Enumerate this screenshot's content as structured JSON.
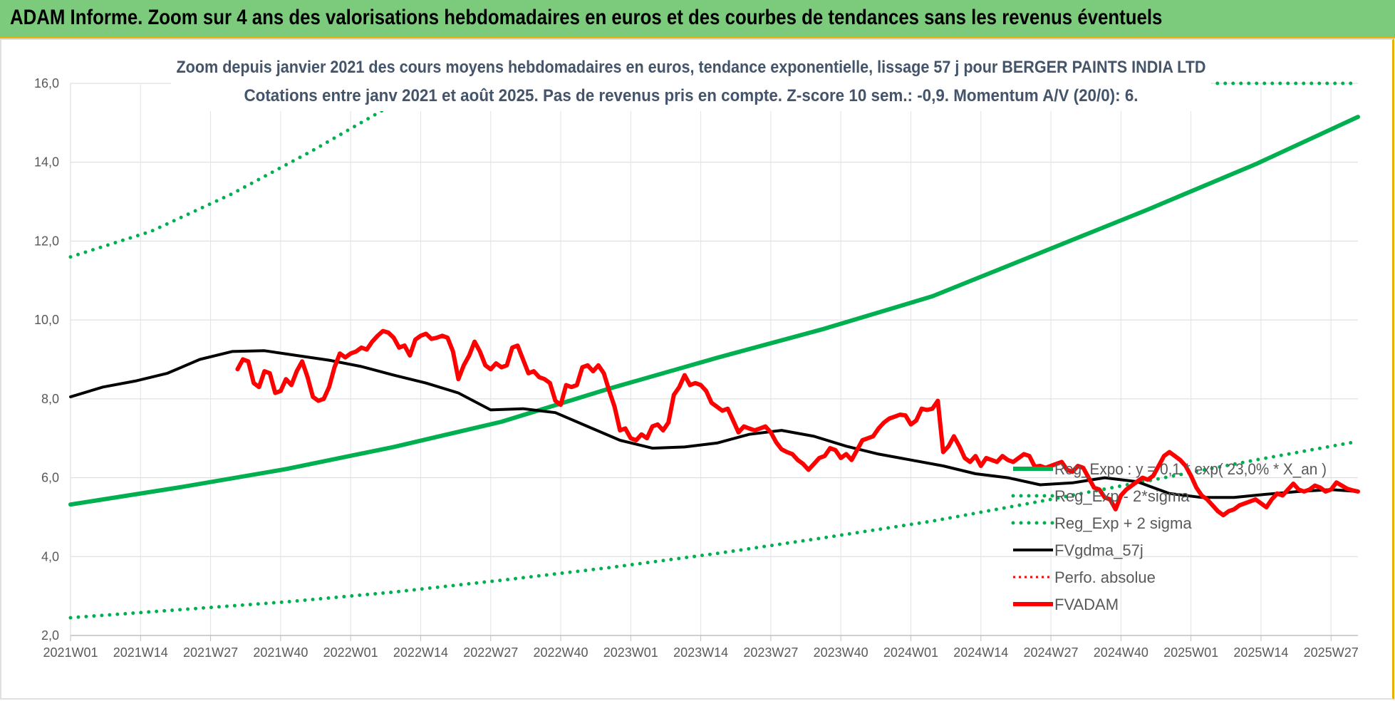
{
  "banner": {
    "title": "ADAM Informe. Zoom sur 4 ans des valorisations hebdomadaires en euros et des courbes de tendances sans les revenus éventuels",
    "background": "#7ccb7c"
  },
  "chart_data": {
    "type": "line",
    "title": "Zoom depuis janvier 2021 des cours moyens hebdomadaires en euros, tendance exponentielle, lissage 57 j pour BERGER PAINTS INDIA LTD",
    "subtitle": "Cotations entre janv 2021 et août 2025.  Pas de revenus pris en compte. Z-score 10 sem.: -0,9. Momentum A/V (20/0): 6.",
    "xlabel": "",
    "ylabel": "",
    "ylim": [
      2.0,
      16.0
    ],
    "yticks": [
      "16,0",
      "14,0",
      "12,0",
      "10,0",
      "8,0",
      "6,0",
      "4,0",
      "2,0"
    ],
    "ytick_values": [
      16,
      14,
      12,
      10,
      8,
      6,
      4,
      2
    ],
    "xticks": [
      "2021W01",
      "2021W14",
      "2021W27",
      "2021W40",
      "2022W01",
      "2022W14",
      "2022W27",
      "2022W40",
      "2023W01",
      "2023W14",
      "2023W27",
      "2023W40",
      "2024W01",
      "2024W14",
      "2024W27",
      "2024W40",
      "2025W01",
      "2025W14",
      "2025W27"
    ],
    "xtick_weeks": [
      0,
      13,
      26,
      39,
      52,
      65,
      78,
      91,
      104,
      117,
      130,
      143,
      156,
      169,
      182,
      195,
      208,
      221,
      234
    ],
    "n_weeks": 240,
    "grid": true,
    "legend_position": "bottom-right",
    "series": [
      {
        "name": "Reg_Expo : y = 0,1 * exp( 23,0% * X_an )",
        "style": "solid",
        "color": "#00b050",
        "points": [
          [
            0,
            5.32
          ],
          [
            20,
            5.75
          ],
          [
            40,
            6.22
          ],
          [
            60,
            6.78
          ],
          [
            80,
            7.42
          ],
          [
            100,
            8.26
          ],
          [
            120,
            9.04
          ],
          [
            140,
            9.78
          ],
          [
            160,
            10.6
          ],
          [
            180,
            11.7
          ],
          [
            200,
            12.8
          ],
          [
            220,
            13.95
          ],
          [
            239,
            15.15
          ]
        ]
      },
      {
        "name": "Reg_Exp - 2*sigma",
        "style": "dotted",
        "color": "#00b050",
        "points": [
          [
            0,
            2.45
          ],
          [
            20,
            2.65
          ],
          [
            40,
            2.85
          ],
          [
            60,
            3.1
          ],
          [
            80,
            3.4
          ],
          [
            100,
            3.72
          ],
          [
            120,
            4.08
          ],
          [
            140,
            4.48
          ],
          [
            160,
            4.9
          ],
          [
            180,
            5.4
          ],
          [
            200,
            5.92
          ],
          [
            220,
            6.45
          ],
          [
            239,
            6.92
          ]
        ]
      },
      {
        "name": "Reg_Exp + 2 sigma",
        "style": "dotted",
        "color": "#00b050",
        "points": [
          [
            0,
            11.6
          ],
          [
            15,
            12.25
          ],
          [
            30,
            13.2
          ],
          [
            45,
            14.3
          ],
          [
            59,
            15.4
          ],
          [
            62,
            15.75
          ],
          [
            63,
            16.0
          ]
        ],
        "clipped_from": 210
      },
      {
        "name": "FVgdma_57j",
        "style": "solid",
        "color": "#000000",
        "points": [
          [
            0,
            8.05
          ],
          [
            6,
            8.3
          ],
          [
            12,
            8.45
          ],
          [
            18,
            8.65
          ],
          [
            24,
            9.0
          ],
          [
            30,
            9.2
          ],
          [
            36,
            9.22
          ],
          [
            42,
            9.1
          ],
          [
            48,
            8.98
          ],
          [
            54,
            8.82
          ],
          [
            60,
            8.6
          ],
          [
            66,
            8.4
          ],
          [
            72,
            8.15
          ],
          [
            78,
            7.72
          ],
          [
            84,
            7.75
          ],
          [
            90,
            7.65
          ],
          [
            96,
            7.3
          ],
          [
            102,
            6.95
          ],
          [
            108,
            6.75
          ],
          [
            114,
            6.78
          ],
          [
            120,
            6.88
          ],
          [
            126,
            7.1
          ],
          [
            132,
            7.2
          ],
          [
            138,
            7.05
          ],
          [
            144,
            6.8
          ],
          [
            150,
            6.6
          ],
          [
            156,
            6.45
          ],
          [
            162,
            6.3
          ],
          [
            168,
            6.1
          ],
          [
            174,
            6.0
          ],
          [
            180,
            5.82
          ],
          [
            186,
            5.87
          ],
          [
            192,
            6.0
          ],
          [
            198,
            5.9
          ],
          [
            204,
            5.6
          ],
          [
            210,
            5.5
          ],
          [
            216,
            5.5
          ],
          [
            222,
            5.58
          ],
          [
            228,
            5.65
          ],
          [
            234,
            5.7
          ],
          [
            239,
            5.65
          ]
        ]
      },
      {
        "name": "Perfo. absolue",
        "style": "dotted",
        "color": "#ff0000",
        "points": []
      },
      {
        "name": "FVADAM",
        "style": "solid",
        "color": "#ff0000",
        "points": [
          [
            0,
            8.75
          ],
          [
            1,
            9.0
          ],
          [
            2,
            8.95
          ],
          [
            3,
            8.4
          ],
          [
            4,
            8.3
          ],
          [
            5,
            8.7
          ],
          [
            6,
            8.65
          ],
          [
            7,
            8.15
          ],
          [
            8,
            8.2
          ],
          [
            9,
            8.5
          ],
          [
            10,
            8.35
          ],
          [
            11,
            8.7
          ],
          [
            12,
            8.95
          ],
          [
            13,
            8.55
          ],
          [
            14,
            8.05
          ],
          [
            15,
            7.95
          ],
          [
            16,
            8.0
          ],
          [
            17,
            8.3
          ],
          [
            18,
            8.8
          ],
          [
            19,
            9.15
          ],
          [
            20,
            9.05
          ],
          [
            21,
            9.15
          ],
          [
            22,
            9.2
          ],
          [
            23,
            9.3
          ],
          [
            24,
            9.25
          ],
          [
            25,
            9.45
          ],
          [
            26,
            9.6
          ],
          [
            27,
            9.72
          ],
          [
            28,
            9.68
          ],
          [
            29,
            9.55
          ],
          [
            30,
            9.3
          ],
          [
            31,
            9.35
          ],
          [
            32,
            9.1
          ],
          [
            33,
            9.5
          ],
          [
            34,
            9.6
          ],
          [
            35,
            9.65
          ],
          [
            36,
            9.52
          ],
          [
            37,
            9.55
          ],
          [
            38,
            9.6
          ],
          [
            39,
            9.55
          ],
          [
            40,
            9.2
          ],
          [
            41,
            8.5
          ],
          [
            42,
            8.85
          ],
          [
            43,
            9.1
          ],
          [
            44,
            9.45
          ],
          [
            45,
            9.2
          ],
          [
            46,
            8.85
          ],
          [
            47,
            8.75
          ],
          [
            48,
            8.9
          ],
          [
            49,
            8.8
          ],
          [
            50,
            8.85
          ],
          [
            51,
            9.3
          ],
          [
            52,
            9.35
          ],
          [
            53,
            9.0
          ],
          [
            54,
            8.65
          ],
          [
            55,
            8.7
          ],
          [
            56,
            8.55
          ],
          [
            57,
            8.5
          ],
          [
            58,
            8.4
          ],
          [
            59,
            7.95
          ],
          [
            60,
            7.85
          ],
          [
            61,
            8.35
          ],
          [
            62,
            8.3
          ],
          [
            63,
            8.35
          ],
          [
            64,
            8.8
          ],
          [
            65,
            8.85
          ],
          [
            66,
            8.7
          ],
          [
            67,
            8.85
          ],
          [
            68,
            8.65
          ],
          [
            69,
            8.2
          ],
          [
            70,
            7.8
          ],
          [
            71,
            7.2
          ],
          [
            72,
            7.25
          ],
          [
            73,
            7.0
          ],
          [
            74,
            6.95
          ],
          [
            75,
            7.1
          ],
          [
            76,
            7.0
          ],
          [
            77,
            7.3
          ],
          [
            78,
            7.35
          ],
          [
            79,
            7.2
          ],
          [
            80,
            7.4
          ],
          [
            81,
            8.1
          ],
          [
            82,
            8.3
          ],
          [
            83,
            8.6
          ],
          [
            84,
            8.35
          ],
          [
            85,
            8.4
          ],
          [
            86,
            8.35
          ],
          [
            87,
            8.2
          ],
          [
            88,
            7.9
          ],
          [
            89,
            7.8
          ],
          [
            90,
            7.7
          ],
          [
            91,
            7.75
          ],
          [
            92,
            7.45
          ],
          [
            93,
            7.15
          ],
          [
            94,
            7.3
          ],
          [
            95,
            7.25
          ],
          [
            96,
            7.2
          ],
          [
            97,
            7.25
          ],
          [
            98,
            7.3
          ],
          [
            99,
            7.15
          ],
          [
            100,
            6.9
          ],
          [
            101,
            6.72
          ],
          [
            102,
            6.65
          ],
          [
            103,
            6.6
          ],
          [
            104,
            6.45
          ],
          [
            105,
            6.35
          ],
          [
            106,
            6.2
          ],
          [
            107,
            6.35
          ],
          [
            108,
            6.5
          ],
          [
            109,
            6.55
          ],
          [
            110,
            6.75
          ],
          [
            111,
            6.7
          ],
          [
            112,
            6.5
          ],
          [
            113,
            6.6
          ],
          [
            114,
            6.45
          ],
          [
            115,
            6.7
          ],
          [
            116,
            6.95
          ],
          [
            117,
            7.0
          ],
          [
            118,
            7.05
          ],
          [
            119,
            7.25
          ],
          [
            120,
            7.4
          ],
          [
            121,
            7.5
          ],
          [
            122,
            7.55
          ],
          [
            123,
            7.6
          ],
          [
            124,
            7.58
          ],
          [
            125,
            7.35
          ],
          [
            126,
            7.45
          ],
          [
            127,
            7.75
          ],
          [
            128,
            7.72
          ],
          [
            129,
            7.75
          ],
          [
            130,
            7.95
          ],
          [
            131,
            6.65
          ],
          [
            132,
            6.8
          ],
          [
            133,
            7.05
          ],
          [
            134,
            6.8
          ],
          [
            135,
            6.5
          ],
          [
            136,
            6.4
          ],
          [
            137,
            6.55
          ],
          [
            138,
            6.3
          ],
          [
            139,
            6.5
          ],
          [
            140,
            6.45
          ],
          [
            141,
            6.4
          ],
          [
            142,
            6.55
          ],
          [
            143,
            6.45
          ],
          [
            144,
            6.4
          ],
          [
            145,
            6.5
          ],
          [
            146,
            6.6
          ],
          [
            147,
            6.55
          ],
          [
            148,
            6.28
          ],
          [
            149,
            6.3
          ],
          [
            150,
            6.25
          ],
          [
            151,
            6.3
          ],
          [
            152,
            6.35
          ],
          [
            153,
            6.4
          ],
          [
            154,
            6.2
          ],
          [
            155,
            6.15
          ],
          [
            156,
            6.3
          ],
          [
            157,
            6.25
          ],
          [
            158,
            6.0
          ],
          [
            159,
            5.75
          ],
          [
            160,
            5.7
          ],
          [
            161,
            5.5
          ],
          [
            162,
            5.45
          ],
          [
            163,
            5.2
          ],
          [
            164,
            5.55
          ],
          [
            165,
            5.7
          ],
          [
            166,
            5.8
          ],
          [
            167,
            5.9
          ],
          [
            168,
            6.0
          ],
          [
            169,
            5.95
          ],
          [
            170,
            6.05
          ],
          [
            171,
            6.3
          ],
          [
            172,
            6.55
          ],
          [
            173,
            6.65
          ],
          [
            174,
            6.55
          ],
          [
            175,
            6.45
          ],
          [
            176,
            6.3
          ],
          [
            177,
            6.05
          ],
          [
            178,
            5.75
          ],
          [
            179,
            5.55
          ],
          [
            180,
            5.45
          ],
          [
            181,
            5.3
          ],
          [
            182,
            5.15
          ],
          [
            183,
            5.05
          ],
          [
            184,
            5.15
          ],
          [
            185,
            5.2
          ],
          [
            186,
            5.3
          ],
          [
            187,
            5.35
          ],
          [
            188,
            5.4
          ],
          [
            189,
            5.45
          ],
          [
            190,
            5.35
          ],
          [
            191,
            5.25
          ],
          [
            192,
            5.45
          ],
          [
            193,
            5.6
          ],
          [
            194,
            5.55
          ],
          [
            195,
            5.7
          ],
          [
            196,
            5.85
          ],
          [
            197,
            5.7
          ],
          [
            198,
            5.65
          ],
          [
            199,
            5.7
          ],
          [
            200,
            5.8
          ],
          [
            201,
            5.75
          ],
          [
            202,
            5.65
          ],
          [
            203,
            5.7
          ],
          [
            204,
            5.88
          ],
          [
            205,
            5.8
          ],
          [
            206,
            5.72
          ],
          [
            207,
            5.68
          ],
          [
            208,
            5.65
          ]
        ],
        "x_offset": 31
      }
    ]
  }
}
